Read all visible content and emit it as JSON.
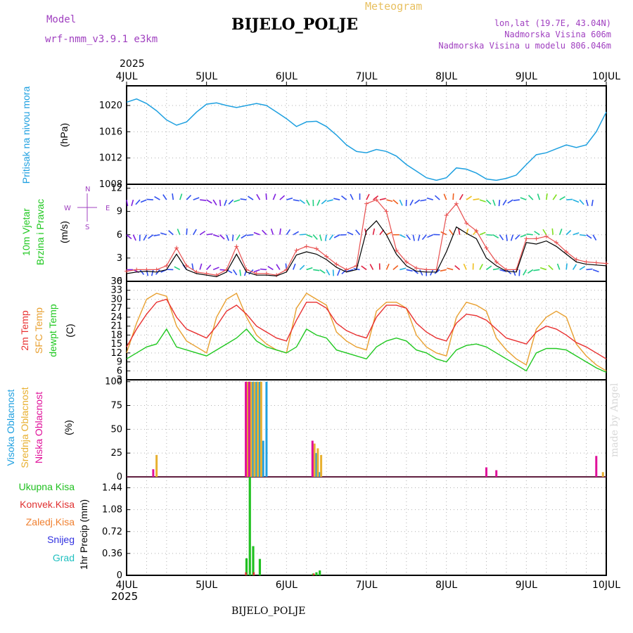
{
  "header": {
    "model_label": "Model",
    "model_name": "wrf-nmm_v3.9.1  e3km",
    "station": "BIJELO_POLJE",
    "meteogram": "Meteogram",
    "lonlat": "lon,lat (19.7E, 43.04N)",
    "elevation": "Nadmorska Visina 606m",
    "model_elevation": "Nadmorska Visina u modelu 806.046m",
    "year_top": "2025",
    "year_bottom": "2025",
    "station_bottom": "BIJELO_POLJE",
    "credit": "made by Angel"
  },
  "colors": {
    "pressure": "#1ea0e0",
    "temp2m": "#e83030",
    "sfc": "#e8a030",
    "dewpt": "#20c820",
    "gust": "#e85050",
    "speed": "#000000",
    "high_cloud": "#20a0e0",
    "mid_cloud": "#e8b030",
    "low_cloud": "#e0109a",
    "total_rain": "#20c020",
    "conv_rain": "#e03030",
    "frozen": "#f08030",
    "snow": "#3030e0",
    "graupel": "#20c0c0",
    "model_label": "#a040c0",
    "info_text": "#a040c0",
    "meteogram_text": "#e8c060"
  },
  "chart_data": [
    {
      "id": "pressure",
      "type": "line",
      "ylabel": "Pritisak na nivou mora",
      "unit": "(hPa)",
      "x_days": [
        "4JUL",
        "5JUL",
        "6JUL",
        "7JUL",
        "8JUL",
        "9JUL",
        "10JUL"
      ],
      "ylim": [
        1008,
        1023
      ],
      "yticks": [
        1008,
        1012,
        1016,
        1020
      ],
      "hours": [
        0,
        3,
        6,
        9,
        12,
        15,
        18,
        21,
        24,
        27,
        30,
        33,
        36,
        39,
        42,
        45,
        48,
        51,
        54,
        57,
        60,
        63,
        66,
        69,
        72,
        75,
        78,
        81,
        84,
        87,
        90,
        93,
        96,
        99,
        102,
        105,
        108,
        111,
        114,
        117,
        120,
        123,
        126,
        129,
        132,
        135,
        138,
        141,
        144
      ],
      "values": [
        1020.5,
        1021,
        1020.3,
        1019.2,
        1017.8,
        1017,
        1017.5,
        1019,
        1020.2,
        1020.4,
        1020,
        1019.7,
        1020,
        1020.3,
        1020,
        1019,
        1018,
        1016.8,
        1017.5,
        1017.6,
        1016.8,
        1015.5,
        1014,
        1013,
        1012.8,
        1013.3,
        1013,
        1012.3,
        1011,
        1010,
        1009,
        1008.6,
        1009,
        1010.5,
        1010.3,
        1009.7,
        1008.8,
        1008.6,
        1008.9,
        1009.4,
        1011,
        1012.5,
        1012.8,
        1013.4,
        1014,
        1013.6,
        1014,
        1016,
        1019
      ]
    },
    {
      "id": "wind",
      "type": "line",
      "ylabel": "10m Vjetar",
      "ylabel2": "Brzina i Pravac",
      "unit": "(m/s)",
      "compass": {
        "north": "N",
        "south": "S",
        "east": "E",
        "west": "W"
      },
      "ylim": [
        0,
        12.5
      ],
      "yticks": [
        0,
        3,
        6,
        9,
        12
      ],
      "hours": [
        0,
        3,
        6,
        9,
        12,
        15,
        18,
        21,
        24,
        27,
        30,
        33,
        36,
        39,
        42,
        45,
        48,
        51,
        54,
        57,
        60,
        63,
        66,
        69,
        72,
        75,
        78,
        81,
        84,
        87,
        90,
        93,
        96,
        99,
        102,
        105,
        108,
        111,
        114,
        117,
        120,
        123,
        126,
        129,
        132,
        135,
        138,
        141,
        144
      ],
      "speed": [
        1,
        1.2,
        1.3,
        1.2,
        1.5,
        3.5,
        1.5,
        1,
        0.8,
        0.6,
        1.2,
        3.5,
        1.2,
        0.8,
        0.8,
        0.7,
        1.2,
        3.4,
        3.8,
        3.5,
        2.8,
        1.8,
        1.2,
        1.5,
        6.5,
        7.8,
        6,
        3.5,
        2,
        1.3,
        1.2,
        1.2,
        3.8,
        7,
        6.2,
        5.5,
        3,
        2,
        1.3,
        1.2,
        5,
        4.8,
        5.2,
        4.5,
        3.5,
        2.5,
        2.2,
        2.1,
        2
      ],
      "gust": [
        1.3,
        1.5,
        1.5,
        1.5,
        2,
        4.3,
        2,
        1.2,
        1,
        0.8,
        1.5,
        4.5,
        1.5,
        1,
        1,
        0.8,
        1.5,
        4,
        4.5,
        4.2,
        3.2,
        2.2,
        1.5,
        2,
        10,
        10.5,
        9,
        4,
        2.5,
        1.7,
        1.5,
        1.5,
        8.5,
        10,
        7.5,
        6.5,
        4.3,
        2.5,
        1.5,
        1.5,
        5.5,
        5.5,
        5.8,
        5,
        3.8,
        2.8,
        2.5,
        2.4,
        2.3
      ],
      "barb_rows": [
        1.5,
        6,
        10.5
      ]
    },
    {
      "id": "temperature",
      "type": "line",
      "ylabel": "2m Temp",
      "ylabel2": "SFC Temp",
      "ylabel3": "dewpt Temp",
      "unit": "(C)",
      "ylim": [
        3,
        36
      ],
      "yticks": [
        3,
        6,
        9,
        12,
        15,
        18,
        21,
        24,
        27,
        30,
        33,
        36
      ],
      "hours": [
        0,
        3,
        6,
        9,
        12,
        15,
        18,
        21,
        24,
        27,
        30,
        33,
        36,
        39,
        42,
        45,
        48,
        51,
        54,
        57,
        60,
        63,
        66,
        69,
        72,
        75,
        78,
        81,
        84,
        87,
        90,
        93,
        96,
        99,
        102,
        105,
        108,
        111,
        114,
        117,
        120,
        123,
        126,
        129,
        132,
        135,
        138,
        141,
        144
      ],
      "t2m": [
        14,
        20,
        25,
        29,
        30,
        24,
        20,
        18.5,
        17,
        21,
        26,
        28,
        25,
        21,
        19,
        17,
        16,
        23,
        29,
        29,
        27,
        22,
        19.5,
        18,
        17,
        24,
        28,
        28,
        27,
        22,
        19,
        17,
        16,
        22,
        25,
        24.5,
        23,
        20,
        17,
        16,
        15,
        19,
        21,
        20,
        18,
        15.5,
        14,
        12,
        10
      ],
      "sfc": [
        12,
        22,
        30,
        32,
        31,
        21,
        16,
        14,
        12,
        24,
        30,
        32,
        24,
        18,
        15,
        13,
        12,
        27,
        32,
        30,
        28,
        19,
        16,
        14,
        13,
        26,
        29,
        29,
        27,
        18,
        14,
        12,
        11,
        24,
        29,
        28,
        26,
        17,
        13,
        10,
        8,
        20,
        24,
        26,
        24,
        15,
        11,
        8,
        6
      ],
      "dewpt": [
        10,
        12,
        14,
        15,
        20,
        14,
        13,
        12,
        11,
        13,
        15,
        17,
        20,
        16,
        14,
        13,
        12,
        14,
        20,
        18,
        17,
        13,
        12,
        11,
        10,
        14,
        16,
        17,
        16,
        13,
        12,
        10,
        9,
        13,
        14.5,
        15,
        14,
        12,
        10,
        8,
        6,
        12,
        13.5,
        13.5,
        13,
        11,
        9,
        7,
        5.5
      ]
    },
    {
      "id": "clouds",
      "type": "bar",
      "ylabel": "Visoka Oblacnost",
      "ylabel2": "Srednja Oblacnost",
      "ylabel3": "Niska Oblacnost",
      "unit": "(%)",
      "ylim": [
        0,
        102
      ],
      "yticks": [
        0,
        25,
        50,
        75,
        100
      ],
      "high": [
        {
          "h": 36,
          "v": 90
        },
        {
          "h": 37,
          "v": 100
        },
        {
          "h": 38,
          "v": 100
        },
        {
          "h": 39,
          "v": 100
        },
        {
          "h": 40,
          "v": 100
        },
        {
          "h": 41,
          "v": 38
        },
        {
          "h": 42,
          "v": 100
        },
        {
          "h": 56,
          "v": 30
        },
        {
          "h": 57,
          "v": 25
        },
        {
          "h": 58,
          "v": 5
        }
      ],
      "mid": [
        {
          "h": 9,
          "v": 23
        },
        {
          "h": 36.4,
          "v": 100
        },
        {
          "h": 37.4,
          "v": 100
        },
        {
          "h": 38.4,
          "v": 100
        },
        {
          "h": 39.4,
          "v": 100
        },
        {
          "h": 40.4,
          "v": 100
        },
        {
          "h": 56.4,
          "v": 35
        },
        {
          "h": 57.4,
          "v": 30
        },
        {
          "h": 58.4,
          "v": 23
        },
        {
          "h": 143,
          "v": 5
        }
      ],
      "low": [
        {
          "h": 8,
          "v": 8
        },
        {
          "h": 35.8,
          "v": 100
        },
        {
          "h": 36.8,
          "v": 100
        },
        {
          "h": 55.8,
          "v": 38
        },
        {
          "h": 108,
          "v": 10
        },
        {
          "h": 111,
          "v": 7
        },
        {
          "h": 141,
          "v": 22
        }
      ]
    },
    {
      "id": "precip",
      "type": "bar",
      "ylabel": "1hr Precip",
      "unit": "(mm)",
      "legend": [
        "Ukupna Kisa",
        "Konvek.Kisa",
        "Zaledj.Kisa",
        "Snijeg",
        "Grad"
      ],
      "ylim": [
        0,
        1.62
      ],
      "yticks": [
        0,
        0.36,
        0.72,
        1.08,
        1.44
      ],
      "total": [
        {
          "h": 36,
          "v": 0.28
        },
        {
          "h": 37,
          "v": 1.62
        },
        {
          "h": 38,
          "v": 0.48
        },
        {
          "h": 40,
          "v": 0.27
        },
        {
          "h": 56,
          "v": 0.03
        },
        {
          "h": 57,
          "v": 0.05
        },
        {
          "h": 58,
          "v": 0.08
        }
      ],
      "conv": [
        {
          "h": 35.8,
          "v": 0.05
        },
        {
          "h": 38.2,
          "v": 0.05
        },
        {
          "h": 56.2,
          "v": 0.03
        }
      ]
    }
  ]
}
